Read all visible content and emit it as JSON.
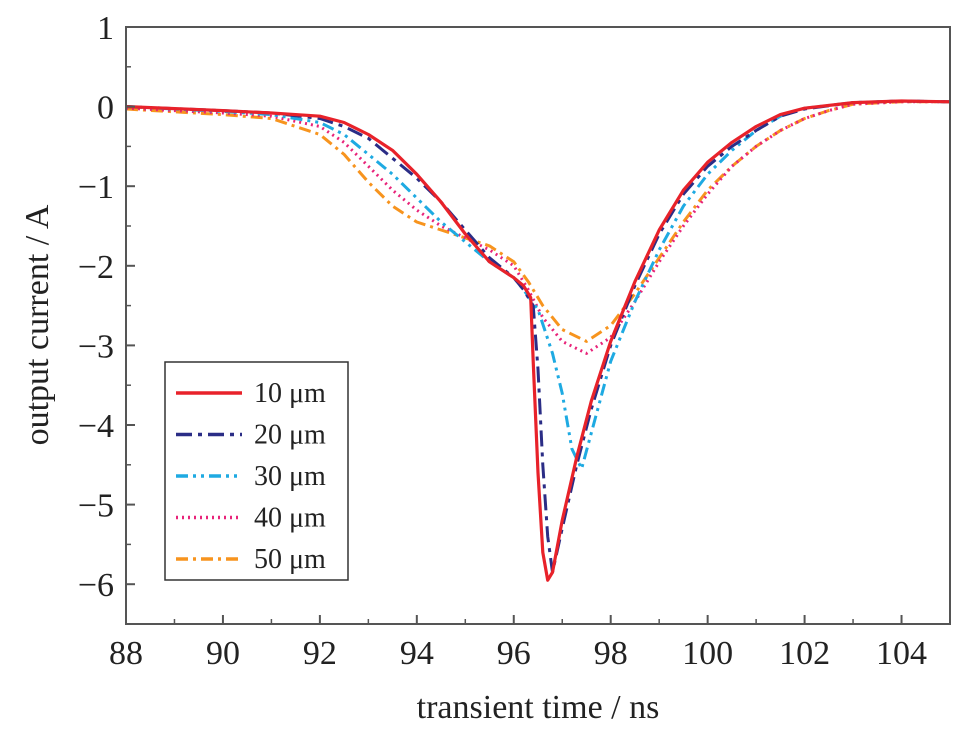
{
  "chart_data": {
    "type": "line",
    "xlabel": "transient time / ns",
    "ylabel": "output current / A",
    "xlim": [
      88,
      105
    ],
    "ylim": [
      -6.5,
      1
    ],
    "xticks": [
      88,
      90,
      92,
      94,
      96,
      98,
      100,
      102,
      104
    ],
    "yticks": [
      1,
      0,
      -1,
      -2,
      -3,
      -4,
      -5,
      -6
    ],
    "xtick_labels": [
      "88",
      "90",
      "92",
      "94",
      "96",
      "98",
      "100",
      "102",
      "104"
    ],
    "ytick_labels": [
      "1",
      "0",
      "−1",
      "−2",
      "−3",
      "−4",
      "−5",
      "−6"
    ],
    "grid": false,
    "legend_position": "lower-left",
    "series": [
      {
        "name": "10 μm",
        "color": "#e8222a",
        "dash": "solid",
        "x": [
          88,
          90,
          91,
          92,
          92.5,
          93,
          93.5,
          94,
          94.5,
          95,
          95.5,
          96,
          96.2,
          96.35,
          96.4,
          96.5,
          96.6,
          96.7,
          96.8,
          97,
          97.3,
          97.6,
          98,
          98.5,
          99,
          99.5,
          100,
          100.5,
          101,
          101.5,
          102,
          103,
          104,
          105
        ],
        "y": [
          0,
          -0.05,
          -0.08,
          -0.12,
          -0.2,
          -0.35,
          -0.55,
          -0.85,
          -1.2,
          -1.6,
          -1.95,
          -2.15,
          -2.25,
          -2.4,
          -3.2,
          -4.6,
          -5.6,
          -5.95,
          -5.85,
          -5.2,
          -4.4,
          -3.7,
          -2.95,
          -2.2,
          -1.55,
          -1.05,
          -0.7,
          -0.45,
          -0.25,
          -0.1,
          -0.02,
          0.05,
          0.07,
          0.06
        ]
      },
      {
        "name": "20 μm",
        "color": "#2b2d86",
        "dash": "dashdot-long",
        "x": [
          88,
          90,
          91,
          92,
          92.5,
          93,
          93.5,
          94,
          94.5,
          95,
          95.5,
          96,
          96.2,
          96.4,
          96.5,
          96.6,
          96.7,
          96.8,
          97,
          97.3,
          97.6,
          98,
          98.5,
          99,
          99.5,
          100,
          100.5,
          101,
          101.5,
          102,
          103,
          104,
          105
        ],
        "y": [
          0,
          -0.05,
          -0.08,
          -0.15,
          -0.25,
          -0.4,
          -0.65,
          -0.9,
          -1.2,
          -1.55,
          -1.9,
          -2.15,
          -2.3,
          -2.5,
          -3.3,
          -4.5,
          -5.4,
          -5.85,
          -5.3,
          -4.5,
          -3.8,
          -3.0,
          -2.25,
          -1.6,
          -1.1,
          -0.75,
          -0.5,
          -0.3,
          -0.12,
          -0.03,
          0.05,
          0.07,
          0.06
        ]
      },
      {
        "name": "30 μm",
        "color": "#1eaae2",
        "dash": "dashdotdot",
        "x": [
          88,
          90,
          91,
          92,
          92.5,
          93,
          93.5,
          94,
          94.5,
          95,
          95.5,
          96,
          96.2,
          96.5,
          96.8,
          97,
          97.2,
          97.4,
          97.6,
          98,
          98.5,
          99,
          99.5,
          100,
          100.5,
          101,
          101.5,
          102,
          103,
          104,
          105
        ],
        "y": [
          0,
          -0.06,
          -0.1,
          -0.2,
          -0.35,
          -0.6,
          -0.85,
          -1.15,
          -1.45,
          -1.7,
          -1.95,
          -2.15,
          -2.3,
          -2.55,
          -3.1,
          -3.6,
          -4.3,
          -4.55,
          -4.1,
          -3.2,
          -2.45,
          -1.8,
          -1.25,
          -0.85,
          -0.55,
          -0.3,
          -0.12,
          -0.02,
          0.05,
          0.07,
          0.06
        ]
      },
      {
        "name": "40 μm",
        "color": "#e8247a",
        "dash": "dotted",
        "x": [
          88,
          90,
          91,
          92,
          92.5,
          93,
          93.5,
          94,
          94.5,
          95,
          95.5,
          96,
          96.3,
          96.6,
          97,
          97.5,
          98,
          98.5,
          99,
          99.5,
          100,
          100.5,
          101,
          101.5,
          102,
          102.5,
          103,
          104,
          105
        ],
        "y": [
          -0.02,
          -0.08,
          -0.12,
          -0.25,
          -0.45,
          -0.75,
          -1.05,
          -1.3,
          -1.5,
          -1.65,
          -1.8,
          -2.0,
          -2.3,
          -2.65,
          -2.95,
          -3.1,
          -2.9,
          -2.45,
          -1.95,
          -1.5,
          -1.1,
          -0.75,
          -0.5,
          -0.3,
          -0.15,
          -0.05,
          0.03,
          0.06,
          0.06
        ]
      },
      {
        "name": "50 μm",
        "color": "#f7941e",
        "dash": "dashdot",
        "x": [
          88,
          90,
          91,
          92,
          92.5,
          93,
          93.5,
          94,
          94.5,
          95,
          95.5,
          96,
          96.3,
          96.6,
          97,
          97.5,
          98,
          98.5,
          99,
          99.5,
          100,
          100.5,
          101,
          101.5,
          102,
          102.5,
          103,
          104,
          105
        ],
        "y": [
          -0.03,
          -0.1,
          -0.15,
          -0.35,
          -0.6,
          -0.95,
          -1.25,
          -1.45,
          -1.55,
          -1.65,
          -1.75,
          -1.95,
          -2.2,
          -2.5,
          -2.8,
          -2.95,
          -2.75,
          -2.35,
          -1.9,
          -1.45,
          -1.05,
          -0.75,
          -0.5,
          -0.3,
          -0.15,
          -0.05,
          0.03,
          0.06,
          0.06
        ]
      }
    ]
  }
}
